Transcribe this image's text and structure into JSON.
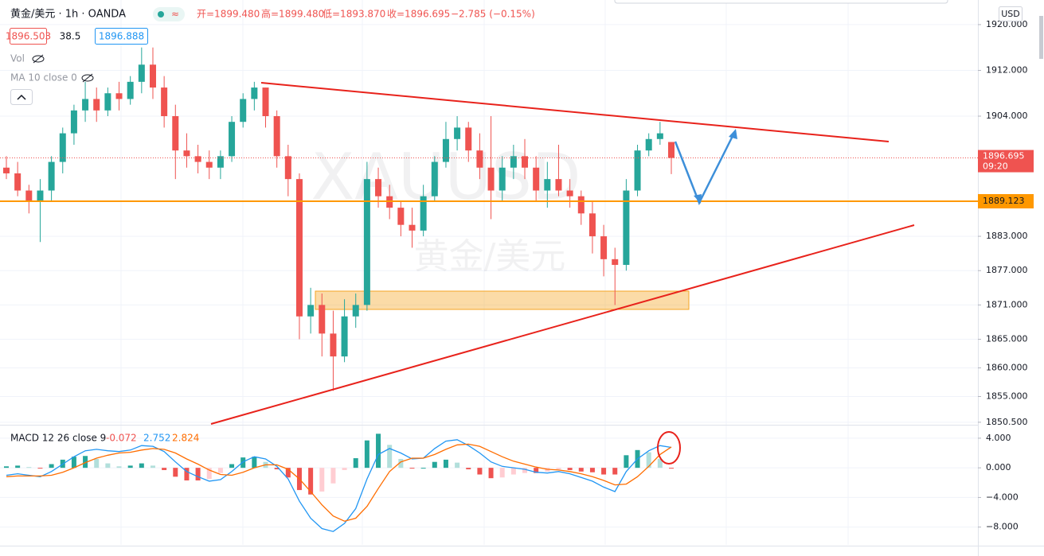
{
  "header": {
    "symbol": "黄金/美元 · 1h · OANDA",
    "open": "开=1899.480",
    "high": "高=1899.480",
    "low": "低=1893.870",
    "close": "收=1896.695",
    "change": "−2.785 (−0.15%)",
    "bid": "1896.503",
    "spread": "38.5",
    "ask": "1896.888",
    "volume": "Vol",
    "ma": "MA 10 close 0",
    "currency": "USD",
    "watermark": "XAUUSD",
    "watermark_name": "黄金/美元"
  },
  "chart_data": [
    {
      "type": "candlestick",
      "up_color": "#26a69a",
      "down_color": "#ef5350",
      "ohlc": [
        [
          1895,
          1897,
          1893,
          1894
        ],
        [
          1894,
          1896,
          1890,
          1891
        ],
        [
          1891,
          1892,
          1887,
          1889
        ],
        [
          1889,
          1893,
          1882,
          1891
        ],
        [
          1891,
          1897,
          1889,
          1896
        ],
        [
          1896,
          1902,
          1894,
          1901
        ],
        [
          1901,
          1906,
          1899,
          1905
        ],
        [
          1905,
          1910,
          1903,
          1907
        ],
        [
          1907,
          1909,
          1903,
          1905
        ],
        [
          1905,
          1909,
          1904,
          1908
        ],
        [
          1908,
          1910,
          1905,
          1907
        ],
        [
          1907,
          1911,
          1906,
          1910
        ],
        [
          1910,
          1916,
          1908,
          1913
        ],
        [
          1913,
          1916,
          1907,
          1909
        ],
        [
          1909,
          1911,
          1902,
          1904
        ],
        [
          1904,
          1906,
          1893,
          1898
        ],
        [
          1898,
          1901,
          1895,
          1897
        ],
        [
          1897,
          1899,
          1894,
          1896
        ],
        [
          1896,
          1898,
          1893,
          1895
        ],
        [
          1895,
          1898,
          1893,
          1897
        ],
        [
          1897,
          1904,
          1896,
          1903
        ],
        [
          1903,
          1908,
          1902,
          1907
        ],
        [
          1907,
          1910,
          1905,
          1909
        ],
        [
          1909,
          1909,
          1902,
          1904
        ],
        [
          1904,
          1905,
          1895,
          1897
        ],
        [
          1897,
          1899,
          1890,
          1893
        ],
        [
          1893,
          1894,
          1865,
          1869
        ],
        [
          1869,
          1874,
          1866,
          1871
        ],
        [
          1871,
          1873,
          1862,
          1866
        ],
        [
          1866,
          1870,
          1856,
          1862
        ],
        [
          1862,
          1872,
          1861,
          1869
        ],
        [
          1869,
          1873,
          1867,
          1871
        ],
        [
          1871,
          1896,
          1870,
          1893
        ],
        [
          1893,
          1895,
          1888,
          1890
        ],
        [
          1890,
          1892,
          1886,
          1888
        ],
        [
          1888,
          1889,
          1883,
          1885
        ],
        [
          1885,
          1888,
          1881,
          1884
        ],
        [
          1884,
          1892,
          1883,
          1890
        ],
        [
          1890,
          1897,
          1889,
          1896
        ],
        [
          1896,
          1903,
          1895,
          1900
        ],
        [
          1900,
          1904,
          1898,
          1902
        ],
        [
          1902,
          1903,
          1896,
          1898
        ],
        [
          1898,
          1901,
          1893,
          1895
        ],
        [
          1895,
          1904,
          1886,
          1891
        ],
        [
          1891,
          1897,
          1889,
          1895
        ],
        [
          1895,
          1899,
          1893,
          1897
        ],
        [
          1897,
          1900,
          1893,
          1895
        ],
        [
          1895,
          1897,
          1889,
          1891
        ],
        [
          1891,
          1896,
          1888,
          1893
        ],
        [
          1893,
          1899,
          1890,
          1891
        ],
        [
          1891,
          1893,
          1888,
          1890
        ],
        [
          1890,
          1891,
          1885,
          1887
        ],
        [
          1887,
          1889,
          1880,
          1883
        ],
        [
          1883,
          1885,
          1876,
          1879
        ],
        [
          1879,
          1881,
          1871,
          1878
        ],
        [
          1878,
          1893,
          1877,
          1891
        ],
        [
          1891,
          1899,
          1890,
          1898
        ],
        [
          1898,
          1901,
          1897,
          1900
        ],
        [
          1900,
          1903,
          1899,
          1901
        ],
        [
          1899.48,
          1899.48,
          1893.87,
          1896.695
        ]
      ],
      "ylim": [
        1850.2,
        1924.3
      ],
      "yticks": [
        {
          "value": 1920,
          "label": "1920.000"
        },
        {
          "value": 1912,
          "label": "1912.000"
        },
        {
          "value": 1904,
          "label": "1904.000"
        },
        {
          "value": 1883,
          "label": "1883.000"
        },
        {
          "value": 1877,
          "label": "1877.000"
        },
        {
          "value": 1871,
          "label": "1871.000"
        },
        {
          "value": 1865,
          "label": "1865.000"
        },
        {
          "value": 1860,
          "label": "1860.000"
        },
        {
          "value": 1855,
          "label": "1855.000"
        },
        {
          "value": 1850.5,
          "label": "1850.500"
        }
      ],
      "grid": true,
      "last_price": 1896.695,
      "last_price_color": "#ef5350",
      "countdown": "09:20",
      "level": 1889.123,
      "level_color": "#ff9800"
    },
    {
      "type": "macd",
      "title": "MACD 12 26 close 9",
      "legend_values": [
        "-0.072",
        "2.752",
        "2.824"
      ],
      "histogram": {
        "colors": [
          "#26a69a",
          "#b2dfdb",
          "#ffcdd2",
          "#ef5350"
        ],
        "values": [
          0.2,
          0.3,
          0.1,
          -0.1,
          0.5,
          1.1,
          1.5,
          1.6,
          1.2,
          0.6,
          0.2,
          0.3,
          0.6,
          0.3,
          -0.3,
          -1.2,
          -1.7,
          -1.7,
          -1.5,
          -0.7,
          0.5,
          1.4,
          1.5,
          0.8,
          -0.2,
          -1.3,
          -3.0,
          -3.6,
          -3.2,
          -2.1,
          -0.3,
          1.3,
          3.7,
          4.6,
          3.1,
          1.2,
          -0.1,
          0.0,
          0.8,
          1.1,
          0.7,
          -0.2,
          -0.9,
          -1.4,
          -1.3,
          -0.9,
          -0.7,
          -0.7,
          -0.5,
          -0.2,
          -0.3,
          -0.5,
          -0.6,
          -0.9,
          -0.9,
          1.7,
          2.4,
          2.1,
          1.2,
          -0.072
        ]
      },
      "series": [
        {
          "color": "#2196f3",
          "values": [
            -1.0,
            -0.8,
            -1.0,
            -1.2,
            -0.5,
            0.5,
            1.5,
            2.3,
            2.5,
            2.3,
            2.2,
            2.4,
            3.0,
            2.9,
            2.2,
            0.8,
            -0.5,
            -1.2,
            -1.8,
            -1.6,
            -0.5,
            0.8,
            1.5,
            1.2,
            0.2,
            -1.5,
            -4.5,
            -6.8,
            -8.2,
            -8.6,
            -7.5,
            -5.5,
            -1.5,
            1.8,
            2.6,
            2.0,
            1.2,
            1.3,
            2.6,
            3.6,
            3.8,
            3.0,
            2.0,
            0.8,
            0.2,
            0.0,
            -0.2,
            -0.6,
            -0.7,
            -0.5,
            -0.8,
            -1.3,
            -1.8,
            -2.6,
            -3.2,
            -0.5,
            1.2,
            2.3,
            3.0,
            2.752
          ]
        },
        {
          "color": "#ff6d00",
          "values": [
            -1.2,
            -1.1,
            -1.1,
            -1.1,
            -1.0,
            -0.6,
            0.0,
            0.7,
            1.3,
            1.7,
            2.0,
            2.1,
            2.4,
            2.6,
            2.5,
            2.0,
            1.2,
            0.5,
            -0.3,
            -0.9,
            -1.0,
            -0.6,
            0.0,
            0.4,
            0.4,
            -0.2,
            -1.5,
            -3.2,
            -5.0,
            -6.5,
            -7.2,
            -6.8,
            -5.2,
            -2.8,
            -0.5,
            0.8,
            1.3,
            1.3,
            1.8,
            2.5,
            3.1,
            3.2,
            2.9,
            2.2,
            1.5,
            0.9,
            0.5,
            0.1,
            -0.2,
            -0.3,
            -0.5,
            -0.8,
            -1.2,
            -1.7,
            -2.3,
            -2.2,
            -1.2,
            0.2,
            1.8,
            2.824
          ]
        }
      ],
      "ylim": [
        -10.4,
        5.6
      ],
      "yticks": [
        {
          "value": 4,
          "label": "4.000"
        },
        {
          "value": 0,
          "label": "0.000"
        },
        {
          "value": -4,
          "label": "−4.000"
        },
        {
          "value": -8,
          "label": "−8.000"
        }
      ],
      "grid": true
    }
  ]
}
